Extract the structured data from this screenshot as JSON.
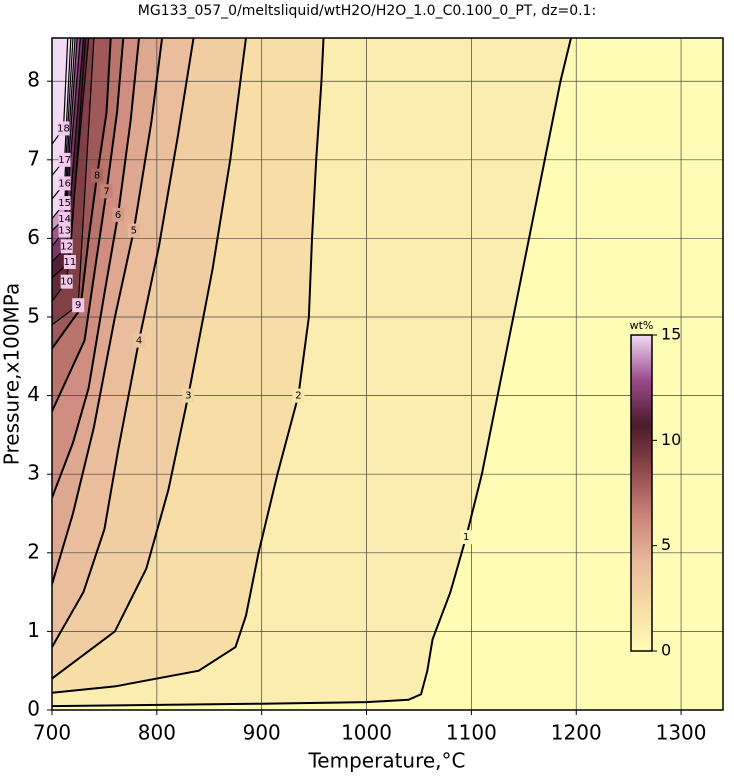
{
  "chart_data": {
    "type": "contour",
    "title": "MG133_057_0/meltsliquid/wtH2O/H2O_1.0_C0.100_0_PT, dz=0.1:",
    "xlabel": "Temperature,°C",
    "ylabel": "Pressure,x100MPa",
    "xlim": [
      700,
      1340
    ],
    "ylim": [
      0,
      8.55
    ],
    "xticks": [
      700,
      800,
      900,
      1000,
      1100,
      1200,
      1300
    ],
    "yticks": [
      0,
      1,
      2,
      3,
      4,
      5,
      6,
      7,
      8
    ],
    "grid": true,
    "contours": [
      {
        "level": 1,
        "x": [
          700,
          900,
          1000,
          1040,
          1052,
          1058,
          1063,
          1080,
          1095,
          1110,
          1125,
          1140,
          1155,
          1170,
          1185,
          1195
        ],
        "y": [
          0.05,
          0.08,
          0.1,
          0.13,
          0.2,
          0.5,
          0.9,
          1.5,
          2.2,
          3,
          4,
          5,
          6,
          7,
          8,
          8.55
        ]
      },
      {
        "level": 2,
        "x": [
          700,
          760,
          840,
          875,
          885,
          897,
          915,
          935,
          945,
          948,
          952,
          957,
          959
        ],
        "y": [
          0.22,
          0.3,
          0.5,
          0.8,
          1.2,
          2,
          3,
          4,
          5,
          6,
          7,
          8,
          8.55
        ]
      },
      {
        "level": 3,
        "x": [
          700,
          720,
          760,
          790,
          811,
          830,
          853,
          870,
          885
        ],
        "y": [
          0.4,
          0.6,
          1,
          1.8,
          2.8,
          4,
          5.6,
          7,
          8.55
        ]
      },
      {
        "level": 4,
        "x": [
          700,
          730,
          750,
          763,
          783,
          802,
          820,
          835
        ],
        "y": [
          0.8,
          1.5,
          2.3,
          3.3,
          4.7,
          5.9,
          7.3,
          8.55
        ]
      },
      {
        "level": 5,
        "x": [
          700,
          720,
          740,
          760,
          778,
          795,
          805
        ],
        "y": [
          1.6,
          2.5,
          3.6,
          5,
          6.1,
          7.5,
          8.55
        ]
      },
      {
        "level": 6,
        "x": [
          700,
          720,
          735,
          750,
          763,
          775,
          783
        ],
        "y": [
          2.7,
          3.4,
          4.1,
          5.3,
          6.3,
          7.5,
          8.55
        ]
      },
      {
        "level": 7,
        "x": [
          700,
          731,
          742,
          752,
          762,
          768
        ],
        "y": [
          3.8,
          4.7,
          5.7,
          6.6,
          7.6,
          8.55
        ]
      },
      {
        "level": 8,
        "x": [
          700,
          727,
          735,
          743,
          752,
          756
        ],
        "y": [
          4.6,
          5.1,
          6,
          6.8,
          7.6,
          8.55
        ]
      },
      {
        "level": 9,
        "x": [
          700,
          725,
          740
        ],
        "y": [
          4.9,
          5.15,
          8.55
        ]
      },
      {
        "level": 10,
        "x": [
          700,
          714,
          735
        ],
        "y": [
          5.2,
          5.45,
          8.55
        ]
      },
      {
        "level": 11,
        "x": [
          700,
          717,
          732
        ],
        "y": [
          5.5,
          5.7,
          8.55
        ]
      },
      {
        "level": 12,
        "x": [
          700,
          714,
          730
        ],
        "y": [
          5.7,
          5.9,
          8.55
        ]
      },
      {
        "level": 13,
        "x": [
          700,
          712,
          727
        ],
        "y": [
          5.9,
          6.1,
          8.55
        ]
      },
      {
        "level": 14,
        "x": [
          700,
          712,
          724
        ],
        "y": [
          6.1,
          6.25,
          8.55
        ]
      },
      {
        "level": 15,
        "x": [
          700,
          712,
          722
        ],
        "y": [
          6.25,
          6.45,
          8.55
        ]
      },
      {
        "level": 16,
        "x": [
          700,
          712,
          720
        ],
        "y": [
          6.5,
          6.7,
          8.55
        ]
      },
      {
        "level": 17,
        "x": [
          700,
          712,
          718
        ],
        "y": [
          6.8,
          7.0,
          8.55
        ]
      },
      {
        "level": 18,
        "x": [
          700,
          711,
          715
        ],
        "y": [
          7.2,
          7.4,
          8.55
        ]
      }
    ],
    "colorbar": {
      "label": "wt%",
      "lim": [
        0,
        15
      ],
      "ticks": [
        0,
        5,
        10,
        15
      ],
      "colors": [
        "#fffcb6",
        "#f6dca6",
        "#e8b89a",
        "#c98478",
        "#8e4a4c",
        "#4a1a2a",
        "#9a4a8c",
        "#f2dcf4"
      ]
    }
  }
}
